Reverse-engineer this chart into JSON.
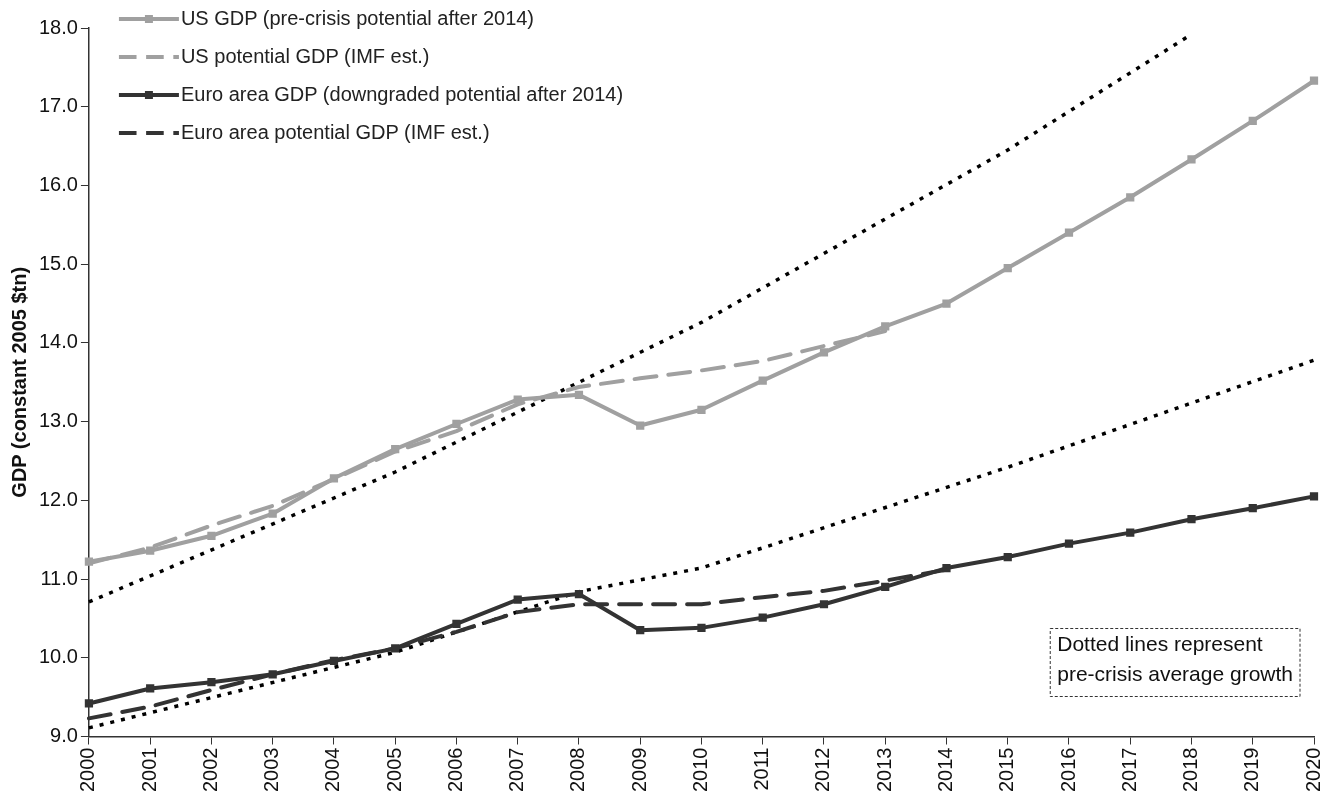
{
  "chart_data": {
    "type": "line",
    "ylabel": "GDP (constant 2005 $tn)",
    "categories": [
      "2000",
      "2001",
      "2002",
      "2003",
      "2004",
      "2005",
      "2006",
      "2007",
      "2008",
      "2009",
      "2010",
      "2011",
      "2012",
      "2013",
      "2014",
      "2015",
      "2016",
      "2017",
      "2018",
      "2019",
      "2020"
    ],
    "ylim": [
      9,
      18
    ],
    "yticks": [
      {
        "value": 9,
        "label": "9.0"
      },
      {
        "value": 10,
        "label": "10.0"
      },
      {
        "value": 11,
        "label": "11.0"
      },
      {
        "value": 12,
        "label": "12.0"
      },
      {
        "value": 13,
        "label": "13.0"
      },
      {
        "value": 14,
        "label": "14.0"
      },
      {
        "value": 15,
        "label": "15.0"
      },
      {
        "value": 16,
        "label": "16.0"
      },
      {
        "value": 17,
        "label": "17.0"
      },
      {
        "value": 18,
        "label": "18.0"
      }
    ],
    "grid": false,
    "legend": "top left",
    "series": [
      {
        "name": "US GDP (pre-crisis potential after 2014)",
        "color": "#a0a0a0",
        "line_style": "solid",
        "marker": "square",
        "values": [
          11.22,
          11.36,
          11.55,
          11.83,
          12.28,
          12.65,
          12.97,
          13.28,
          13.34,
          12.95,
          13.15,
          13.52,
          13.88,
          14.21,
          14.5,
          14.95,
          15.4,
          15.85,
          16.33,
          16.82,
          17.33
        ]
      },
      {
        "name": "US potential GDP (IMF est.)",
        "color": "#a0a0a0",
        "line_style": "dashed",
        "marker": "none",
        "values": [
          11.2,
          11.4,
          11.68,
          11.93,
          12.27,
          12.62,
          12.88,
          13.22,
          13.44,
          13.55,
          13.65,
          13.77,
          13.96,
          14.15,
          null,
          null,
          null,
          null,
          null,
          null,
          null
        ]
      },
      {
        "name": "Euro area GDP (downgraded potential after 2014)",
        "color": "#333333",
        "line_style": "solid",
        "marker": "square",
        "values": [
          9.42,
          9.61,
          9.69,
          9.79,
          9.96,
          10.12,
          10.43,
          10.74,
          10.81,
          10.35,
          10.38,
          10.51,
          10.68,
          10.9,
          11.14,
          11.28,
          11.45,
          11.59,
          11.76,
          11.9,
          12.05
        ]
      },
      {
        "name": "Euro area potential GDP (IMF est.)",
        "color": "#333333",
        "line_style": "dashed",
        "marker": "none",
        "values": [
          9.23,
          9.38,
          9.59,
          9.79,
          9.97,
          10.12,
          10.33,
          10.58,
          10.68,
          10.68,
          10.68,
          10.77,
          10.85,
          10.98,
          11.12,
          null,
          null,
          null,
          null,
          null,
          null
        ]
      },
      {
        "color": "#000000",
        "line_style": "dotted",
        "marker": "none",
        "values": [
          10.71,
          null,
          null,
          null,
          null,
          12.36,
          null,
          null,
          null,
          null,
          14.26,
          null,
          null,
          null,
          null,
          16.45,
          null,
          null,
          17.92,
          null,
          null
        ]
      },
      {
        "color": "#000000",
        "line_style": "dotted",
        "marker": "none",
        "values": [
          9.11,
          null,
          null,
          null,
          null,
          10.07,
          null,
          null,
          10.84,
          null,
          11.14,
          null,
          null,
          null,
          null,
          12.42,
          null,
          null,
          null,
          null,
          13.78
        ]
      }
    ],
    "annotations": [
      "Dotted lines represent\npre-crisis average growth"
    ]
  }
}
